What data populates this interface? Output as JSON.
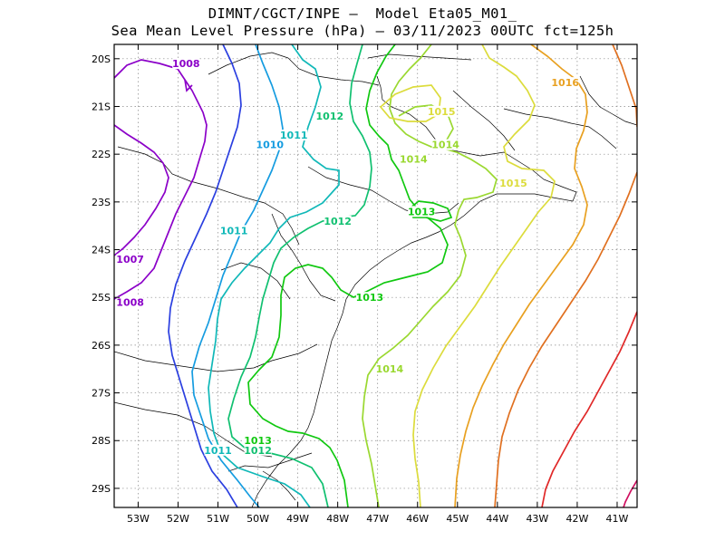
{
  "title_line1": "DIMNT/CGCT/INPE —  Model Eta05_M01_",
  "title_line2": "Sea Mean Level Pressure (hPa) — 03/11/2023 00UTC fct=125h",
  "y_ticks": [
    "20S",
    "21S",
    "22S",
    "23S",
    "24S",
    "25S",
    "26S",
    "27S",
    "28S",
    "29S"
  ],
  "x_ticks": [
    "53W",
    "52W",
    "51W",
    "50W",
    "49W",
    "48W",
    "47W",
    "46W",
    "45W",
    "44W",
    "43W",
    "42W",
    "41W"
  ],
  "map_extent": {
    "lon_min": -53.6,
    "lon_max": -40.5,
    "lat_min": -29.4,
    "lat_max": -19.7
  },
  "grid": "dotted",
  "isobars": [
    {
      "value": 1007,
      "color": "#8b00c8"
    },
    {
      "value": 1008,
      "color": "#8b00c8"
    },
    {
      "value": 1009,
      "color": "#2b3fe0"
    },
    {
      "value": 1010,
      "color": "#159ce0"
    },
    {
      "value": 1011,
      "color": "#10b8b8"
    },
    {
      "value": 1012,
      "color": "#10c070"
    },
    {
      "value": 1013,
      "color": "#10c810"
    },
    {
      "value": 1014,
      "color": "#9ad830"
    },
    {
      "value": 1015,
      "color": "#dcdc3c"
    },
    {
      "value": 1016,
      "color": "#e8a020"
    },
    {
      "value": 1017,
      "color": "#e07020"
    },
    {
      "value": 1018,
      "color": "#e02828"
    },
    {
      "value": 1019,
      "color": "#d01060"
    }
  ],
  "contour_labels": [
    {
      "text": "1008",
      "lon": -51.8,
      "lat": -20.1,
      "color": "#8b00c8"
    },
    {
      "text": "1007",
      "lon": -53.2,
      "lat": -24.2,
      "color": "#8b00c8"
    },
    {
      "text": "1008",
      "lon": -53.2,
      "lat": -25.1,
      "color": "#8b00c8"
    },
    {
      "text": "1010",
      "lon": -49.7,
      "lat": -21.8,
      "color": "#159ce0"
    },
    {
      "text": "1011",
      "lon": -49.1,
      "lat": -21.6,
      "color": "#10b8b8"
    },
    {
      "text": "1012",
      "lon": -48.2,
      "lat": -21.2,
      "color": "#10c070"
    },
    {
      "text": "1011",
      "lon": -50.6,
      "lat": -23.6,
      "color": "#10b8b8"
    },
    {
      "text": "1012",
      "lon": -48.0,
      "lat": -23.4,
      "color": "#10c070"
    },
    {
      "text": "1014",
      "lon": -46.1,
      "lat": -22.1,
      "color": "#9ad830"
    },
    {
      "text": "1013",
      "lon": -45.9,
      "lat": -23.2,
      "color": "#10c810"
    },
    {
      "text": "1015",
      "lon": -45.4,
      "lat": -21.1,
      "color": "#dcdc3c"
    },
    {
      "text": "1014",
      "lon": -45.3,
      "lat": -21.8,
      "color": "#9ad830"
    },
    {
      "text": "1015",
      "lon": -43.6,
      "lat": -22.6,
      "color": "#dcdc3c"
    },
    {
      "text": "1016",
      "lon": -42.3,
      "lat": -20.5,
      "color": "#e8a020"
    },
    {
      "text": "1013",
      "lon": -47.2,
      "lat": -25.0,
      "color": "#10c810"
    },
    {
      "text": "1014",
      "lon": -46.7,
      "lat": -26.5,
      "color": "#9ad830"
    },
    {
      "text": "1013",
      "lon": -50.0,
      "lat": -28.0,
      "color": "#10c810"
    },
    {
      "text": "1011",
      "lon": -51.0,
      "lat": -28.2,
      "color": "#10b8b8"
    },
    {
      "text": "1012",
      "lon": -50.0,
      "lat": -28.2,
      "color": "#10c070"
    }
  ]
}
